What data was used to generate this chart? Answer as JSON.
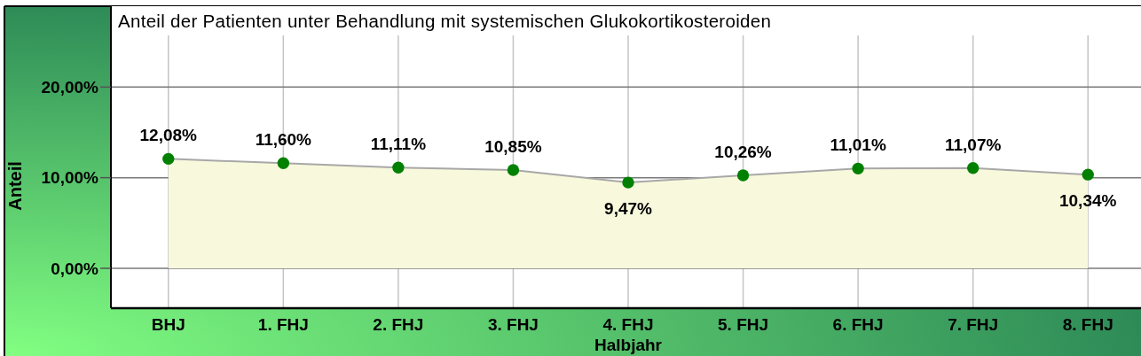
{
  "chart_data": {
    "type": "area",
    "title": "Anteil der Patienten unter Behandlung mit systemischen Glukokortikosteroiden",
    "xlabel": "Halbjahr",
    "ylabel": "Anteil",
    "categories": [
      "BHJ",
      "1. FHJ",
      "2. FHJ",
      "3. FHJ",
      "4. FHJ",
      "5. FHJ",
      "6. FHJ",
      "7. FHJ",
      "8. FHJ"
    ],
    "series": [
      {
        "color": "#f8f8dc",
        "values": [
          12.08,
          11.6,
          11.11,
          10.85,
          9.47,
          10.26,
          11.01,
          11.07,
          10.34
        ],
        "value_labels": [
          "12,08%",
          "11,60%",
          "11,11%",
          "10,85%",
          "9,47%",
          "10,26%",
          "11,01%",
          "11,07%",
          "10,34%"
        ]
      }
    ],
    "ylim": [
      -4.4,
      25.7
    ],
    "yticks": [
      {
        "value": 0,
        "label": "0,00%"
      },
      {
        "value": 10,
        "label": "10,00%"
      },
      {
        "value": 20,
        "label": "20,00%"
      }
    ],
    "grid": true,
    "marker": "circle"
  }
}
